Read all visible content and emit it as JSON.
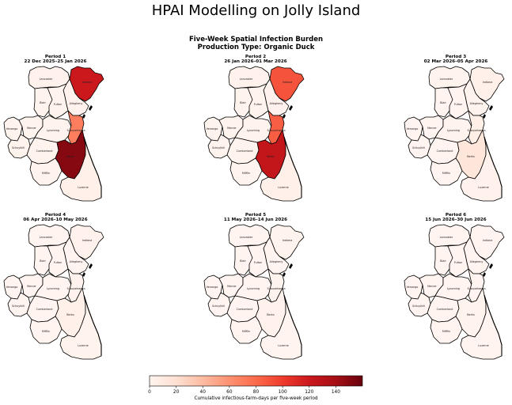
{
  "title": "HPAI Modelling on Jolly Island",
  "subtitle_line1": "Five-Week Spatial Infection Burden",
  "subtitle_line2": "Production Type: Organic Duck",
  "counties": [
    "Lancaster",
    "Indiana",
    "Allegheny",
    "Blair",
    "Fulton",
    "Venango",
    "Mercer",
    "Lycoming",
    "Susquehanna",
    "Schuylkill",
    "Cumberland",
    "Berks",
    "Mifflin",
    "Luzerne"
  ],
  "periods": [
    {
      "title": "Period 1",
      "dates": "22 Dec 2025–25 Jan 2026",
      "values": {
        "Lancaster": 3,
        "Indiana": 120,
        "Allegheny": 3,
        "Blair": 2,
        "Fulton": 2,
        "Venango": 2,
        "Mercer": 2,
        "Lycoming": 2,
        "Susquehanna": 70,
        "Schuylkill": 2,
        "Cumberland": 2,
        "Berks": 150,
        "Mifflin": 2,
        "Luzerne": 5
      }
    },
    {
      "title": "Period 2",
      "dates": "26 Jan 2026–01 Mar 2026",
      "values": {
        "Lancaster": 3,
        "Indiana": 90,
        "Allegheny": 3,
        "Blair": 2,
        "Fulton": 2,
        "Venango": 2,
        "Mercer": 2,
        "Lycoming": 2,
        "Susquehanna": 85,
        "Schuylkill": 2,
        "Cumberland": 2,
        "Berks": 125,
        "Mifflin": 2,
        "Luzerne": 5
      }
    },
    {
      "title": "Period 3",
      "dates": "02 Mar 2026–05 Apr 2026",
      "values": {
        "Lancaster": 2,
        "Indiana": 4,
        "Allegheny": 2,
        "Blair": 1,
        "Fulton": 1,
        "Venango": 1,
        "Mercer": 1,
        "Lycoming": 2,
        "Susquehanna": 6,
        "Schuylkill": 1,
        "Cumberland": 1,
        "Berks": 14,
        "Mifflin": 1,
        "Luzerne": 3
      }
    },
    {
      "title": "Period 4",
      "dates": "06 Apr 2026–10 May 2026",
      "values": {
        "Lancaster": 1,
        "Indiana": 3,
        "Allegheny": 1,
        "Blair": 1,
        "Fulton": 1,
        "Venango": 1,
        "Mercer": 1,
        "Lycoming": 1,
        "Susquehanna": 3,
        "Schuylkill": 1,
        "Cumberland": 1,
        "Berks": 4,
        "Mifflin": 1,
        "Luzerne": 2
      }
    },
    {
      "title": "Period 5",
      "dates": "11 May 2026–14 Jun 2026",
      "values": {
        "Lancaster": 1,
        "Indiana": 2,
        "Allegheny": 1,
        "Blair": 1,
        "Fulton": 1,
        "Venango": 1,
        "Mercer": 1,
        "Lycoming": 1,
        "Susquehanna": 2,
        "Schuylkill": 1,
        "Cumberland": 1,
        "Berks": 3,
        "Mifflin": 1,
        "Luzerne": 1
      }
    },
    {
      "title": "Period 6",
      "dates": "15 Jun 2026–30 Jun 2026",
      "values": {
        "Lancaster": 1,
        "Indiana": 1,
        "Allegheny": 1,
        "Blair": 1,
        "Fulton": 1,
        "Venango": 1,
        "Mercer": 1,
        "Lycoming": 1,
        "Susquehanna": 1,
        "Schuylkill": 1,
        "Cumberland": 1,
        "Berks": 2,
        "Mifflin": 1,
        "Luzerne": 1
      }
    }
  ],
  "colorbar": {
    "label": "Cumulative infectious-farm-days per five-week period",
    "min": 0,
    "max": 160,
    "ticks": [
      "0",
      "20",
      "40",
      "60",
      "80",
      "100",
      "120",
      "140"
    ],
    "colormap": "Reds",
    "stops": [
      "#fff5f0",
      "#fee0d2",
      "#fcbba1",
      "#fc9272",
      "#fb6a4a",
      "#ef3b2c",
      "#cb181d",
      "#a50f15",
      "#67000d"
    ]
  }
}
